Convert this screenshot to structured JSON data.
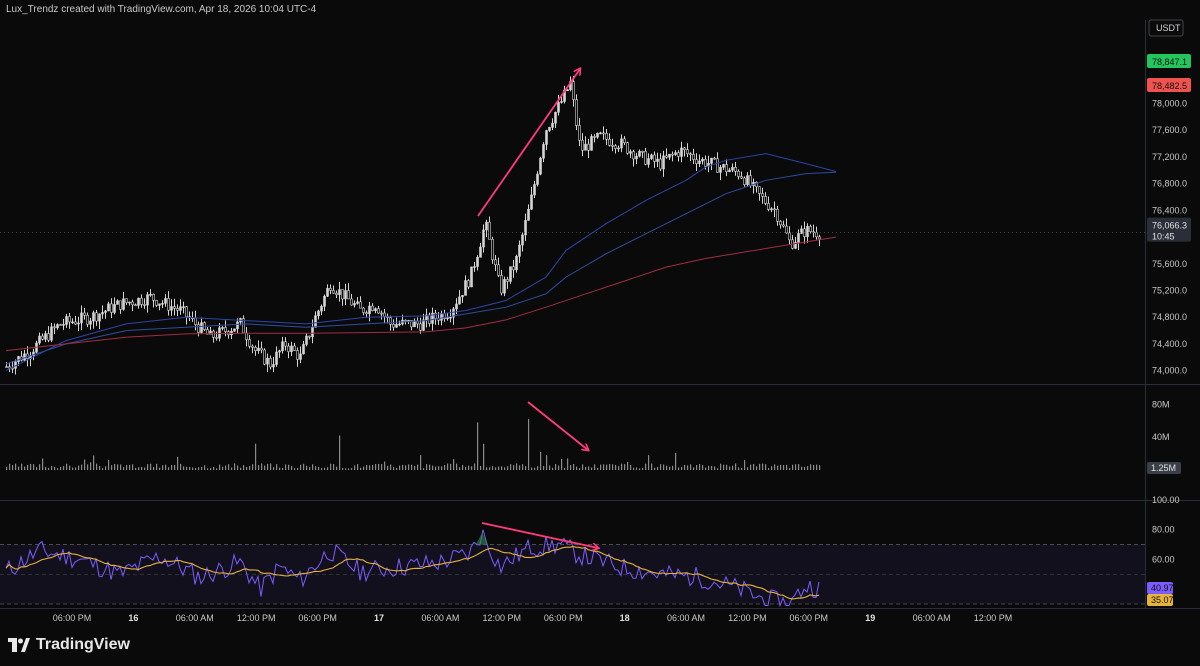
{
  "header": {
    "attribution": "Lux_Trendz created with TradingView.com, Apr 18, 2026 10:04 UTC-4"
  },
  "brand": {
    "name": "TradingView"
  },
  "currency_label": "USDT",
  "colors": {
    "background": "#0a0a0a",
    "candle": "#d4d4d4",
    "ma_fast": "#2a3f8c",
    "ma_slow": "#8c2a3c",
    "rsi": "#7b5cff",
    "rsi_ma": "#e6b43a",
    "arrow": "#ff3b7a",
    "green_badge": "#22c55e",
    "red_badge": "#ef5350"
  },
  "chart_data": [
    {
      "type": "candlestick",
      "pane": "price",
      "y_ticks": [
        "78,000.0",
        "77,600.0",
        "77,200.0",
        "76,800.0",
        "76,400.0",
        "76,000.0",
        "75,600.0",
        "75,200.0",
        "74,800.0",
        "74,400.0",
        "74,000.0"
      ],
      "ylim": [
        73800,
        79250
      ],
      "price_badges": [
        {
          "value": "78,847.1",
          "color": "green"
        },
        {
          "value": "78,482.5",
          "color": "red"
        },
        {
          "value": "76,066.3",
          "sub": "10:45",
          "color": "gray"
        }
      ],
      "last_price": 76066.3,
      "moving_averages": [
        {
          "color": "blue",
          "points": [
            [
              0,
              74000
            ],
            [
              60,
              74450
            ],
            [
              120,
              74700
            ],
            [
              180,
              74800
            ],
            [
              240,
              74750
            ],
            [
              300,
              74700
            ],
            [
              360,
              74800
            ],
            [
              420,
              74820
            ],
            [
              460,
              74900
            ],
            [
              500,
              75050
            ],
            [
              540,
              75400
            ],
            [
              560,
              75800
            ],
            [
              600,
              76200
            ],
            [
              640,
              76550
            ],
            [
              680,
              76850
            ],
            [
              700,
              77050
            ],
            [
              720,
              77150
            ],
            [
              760,
              77250
            ],
            [
              800,
              77100
            ],
            [
              830,
              76980
            ]
          ]
        },
        {
          "color": "blue",
          "points": [
            [
              0,
              74100
            ],
            [
              60,
              74400
            ],
            [
              120,
              74600
            ],
            [
              180,
              74650
            ],
            [
              240,
              74700
            ],
            [
              300,
              74650
            ],
            [
              360,
              74700
            ],
            [
              420,
              74750
            ],
            [
              460,
              74850
            ],
            [
              500,
              74950
            ],
            [
              540,
              75150
            ],
            [
              560,
              75400
            ],
            [
              600,
              75750
            ],
            [
              640,
              76050
            ],
            [
              680,
              76350
            ],
            [
              700,
              76500
            ],
            [
              720,
              76650
            ],
            [
              760,
              76850
            ],
            [
              800,
              76950
            ],
            [
              830,
              76970
            ]
          ]
        },
        {
          "color": "red",
          "points": [
            [
              0,
              74300
            ],
            [
              60,
              74400
            ],
            [
              120,
              74500
            ],
            [
              180,
              74550
            ],
            [
              240,
              74560
            ],
            [
              300,
              74560
            ],
            [
              360,
              74570
            ],
            [
              420,
              74580
            ],
            [
              460,
              74640
            ],
            [
              500,
              74760
            ],
            [
              540,
              74950
            ],
            [
              580,
              75150
            ],
            [
              620,
              75350
            ],
            [
              660,
              75550
            ],
            [
              700,
              75680
            ],
            [
              740,
              75780
            ],
            [
              780,
              75880
            ],
            [
              830,
              76000
            ]
          ]
        }
      ],
      "price_path": [
        [
          0,
          74000
        ],
        [
          30,
          74300
        ],
        [
          60,
          74700
        ],
        [
          90,
          74800
        ],
        [
          120,
          75000
        ],
        [
          150,
          75100
        ],
        [
          180,
          74900
        ],
        [
          210,
          74500
        ],
        [
          240,
          74700
        ],
        [
          255,
          74300
        ],
        [
          270,
          74100
        ],
        [
          285,
          74400
        ],
        [
          300,
          74200
        ],
        [
          315,
          74800
        ],
        [
          330,
          75300
        ],
        [
          345,
          75100
        ],
        [
          360,
          74900
        ],
        [
          375,
          75000
        ],
        [
          390,
          74700
        ],
        [
          420,
          74700
        ],
        [
          450,
          74900
        ],
        [
          470,
          75400
        ],
        [
          485,
          76200
        ],
        [
          500,
          75200
        ],
        [
          515,
          75600
        ],
        [
          530,
          76500
        ],
        [
          545,
          77600
        ],
        [
          560,
          78000
        ],
        [
          570,
          78300
        ],
        [
          580,
          77300
        ],
        [
          600,
          77500
        ],
        [
          620,
          77400
        ],
        [
          640,
          77200
        ],
        [
          660,
          77100
        ],
        [
          680,
          77300
        ],
        [
          700,
          77150
        ],
        [
          720,
          77050
        ],
        [
          740,
          76950
        ],
        [
          760,
          76600
        ],
        [
          775,
          76400
        ],
        [
          790,
          75900
        ],
        [
          805,
          76100
        ],
        [
          820,
          76066
        ]
      ]
    },
    {
      "type": "bar",
      "pane": "volume",
      "y_ticks": [
        "80M",
        "40M"
      ],
      "badge": "1.25M",
      "ylim": [
        0,
        95
      ]
    },
    {
      "type": "line",
      "pane": "rsi",
      "y_ticks": [
        "100.00",
        "80.00",
        "60.00"
      ],
      "band_upper": 70,
      "band_lower": 30,
      "ylim": [
        28,
        100
      ],
      "rsi_value": "40.97",
      "rsi_ma_value": "35.07"
    }
  ],
  "time_axis": [
    {
      "label": "06:00 PM",
      "day": false
    },
    {
      "label": "16",
      "day": true
    },
    {
      "label": "06:00 AM",
      "day": false
    },
    {
      "label": "12:00 PM",
      "day": false
    },
    {
      "label": "06:00 PM",
      "day": false
    },
    {
      "label": "17",
      "day": true
    },
    {
      "label": "06:00 AM",
      "day": false
    },
    {
      "label": "12:00 PM",
      "day": false
    },
    {
      "label": "06:00 PM",
      "day": false
    },
    {
      "label": "18",
      "day": true
    },
    {
      "label": "06:00 AM",
      "day": false
    },
    {
      "label": "12:00 PM",
      "day": false
    },
    {
      "label": "06:00 PM",
      "day": false
    },
    {
      "label": "19",
      "day": true
    },
    {
      "label": "06:00 AM",
      "day": false
    },
    {
      "label": "12:00 PM",
      "day": false
    }
  ]
}
